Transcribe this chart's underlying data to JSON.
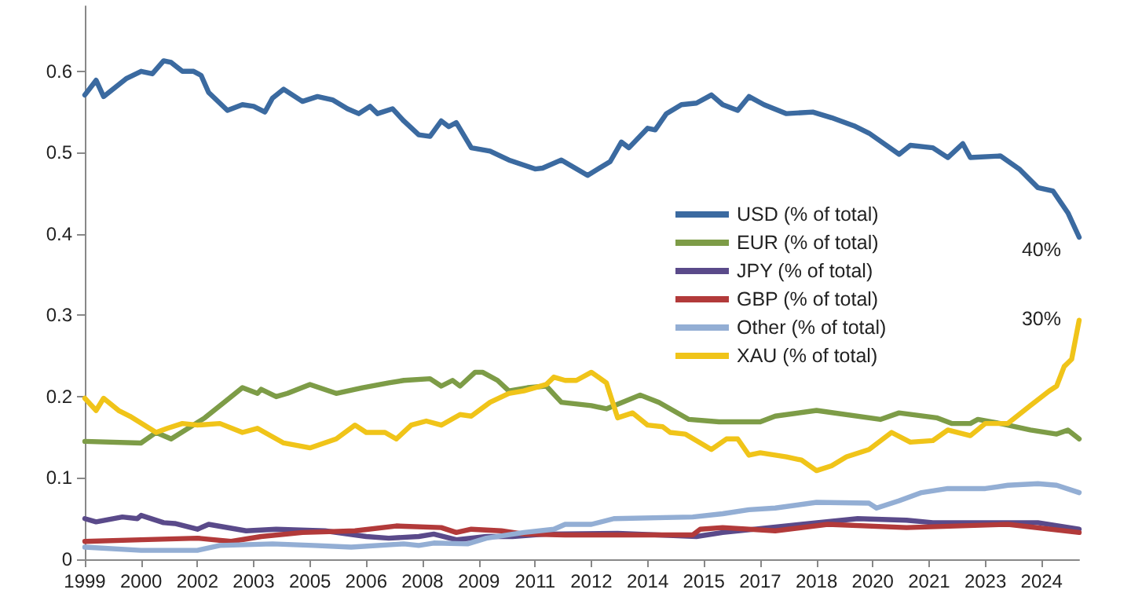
{
  "chart_data": {
    "type": "line",
    "xlim": [
      1999,
      2025.5
    ],
    "ylim": [
      0,
      0.68
    ],
    "yticks": [
      0,
      0.1,
      0.2,
      0.3,
      0.4,
      0.5,
      0.6
    ],
    "xticks": [
      {
        "value": 1999,
        "label": "1999"
      },
      {
        "value": 2000.5,
        "label": "2000"
      },
      {
        "value": 2002,
        "label": "2002"
      },
      {
        "value": 2003.5,
        "label": "2003"
      },
      {
        "value": 2005,
        "label": "2005"
      },
      {
        "value": 2006.5,
        "label": "2006"
      },
      {
        "value": 2008,
        "label": "2008"
      },
      {
        "value": 2009.5,
        "label": "2009"
      },
      {
        "value": 2011,
        "label": "2011"
      },
      {
        "value": 2012.5,
        "label": "2012"
      },
      {
        "value": 2014,
        "label": "2014"
      },
      {
        "value": 2015.5,
        "label": "2015"
      },
      {
        "value": 2017,
        "label": "2017"
      },
      {
        "value": 2018.5,
        "label": "2018"
      },
      {
        "value": 2020,
        "label": "2020"
      },
      {
        "value": 2021.5,
        "label": "2021"
      },
      {
        "value": 2023,
        "label": "2023"
      },
      {
        "value": 2024.5,
        "label": "2024"
      }
    ],
    "grid": false,
    "legend": "right",
    "marker": "none",
    "line_style": "solid",
    "annotations": [
      "40%",
      "30%"
    ],
    "series": [
      {
        "name": "USD (% of total)",
        "color": "#3b6aa0",
        "x": [
          1999,
          1999.3,
          1999.5,
          2000.1,
          2000.5,
          2000.8,
          2001.1,
          2001.3,
          2001.6,
          2001.9,
          2002.1,
          2002.3,
          2002.8,
          2003.2,
          2003.5,
          2003.8,
          2004,
          2004.3,
          2004.8,
          2005.2,
          2005.6,
          2006,
          2006.3,
          2006.6,
          2006.8,
          2007.2,
          2007.5,
          2007.9,
          2008.2,
          2008.5,
          2008.7,
          2008.9,
          2009.3,
          2009.8,
          2010.3,
          2011,
          2011.2,
          2011.7,
          2012.4,
          2013,
          2013.3,
          2013.5,
          2014,
          2014.2,
          2014.5,
          2014.9,
          2015.3,
          2015.7,
          2016,
          2016.4,
          2016.7,
          2017.1,
          2017.7,
          2018.4,
          2018.9,
          2019.5,
          2019.9,
          2020.7,
          2021,
          2021.6,
          2022,
          2022.4,
          2022.6,
          2023.4,
          2023.9,
          2024.4,
          2024.8,
          2025.2,
          2025.5
        ],
        "values": [
          0.571,
          0.589,
          0.569,
          0.591,
          0.6,
          0.597,
          0.613,
          0.611,
          0.6,
          0.6,
          0.595,
          0.574,
          0.552,
          0.559,
          0.557,
          0.55,
          0.567,
          0.578,
          0.563,
          0.569,
          0.565,
          0.554,
          0.548,
          0.557,
          0.548,
          0.554,
          0.539,
          0.522,
          0.52,
          0.539,
          0.532,
          0.537,
          0.506,
          0.502,
          0.491,
          0.48,
          0.481,
          0.491,
          0.472,
          0.489,
          0.513,
          0.506,
          0.53,
          0.528,
          0.548,
          0.559,
          0.561,
          0.571,
          0.559,
          0.552,
          0.569,
          0.559,
          0.548,
          0.55,
          0.543,
          0.533,
          0.524,
          0.498,
          0.509,
          0.506,
          0.494,
          0.511,
          0.494,
          0.496,
          0.48,
          0.457,
          0.453,
          0.426,
          0.396
        ]
      },
      {
        "name": "EUR (% of total)",
        "color": "#7d9c47",
        "x": [
          1999,
          2000.5,
          2000.9,
          2001.3,
          2002.2,
          2003.2,
          2003.6,
          2003.7,
          2004.1,
          2004.4,
          2005,
          2005.7,
          2006.4,
          2007.1,
          2007.5,
          2008.2,
          2008.5,
          2008.8,
          2009,
          2009.4,
          2009.6,
          2010,
          2010.3,
          2010.8,
          2011.3,
          2011.7,
          2012.5,
          2012.9,
          2013.8,
          2014.3,
          2015.1,
          2015.9,
          2017,
          2017.4,
          2018.5,
          2020.2,
          2020.7,
          2021.7,
          2022.1,
          2022.6,
          2022.8,
          2023.4,
          2024.2,
          2024.9,
          2025.2,
          2025.5
        ],
        "values": [
          0.145,
          0.143,
          0.156,
          0.148,
          0.174,
          0.211,
          0.204,
          0.209,
          0.2,
          0.204,
          0.215,
          0.204,
          0.211,
          0.217,
          0.22,
          0.222,
          0.213,
          0.22,
          0.213,
          0.23,
          0.23,
          0.22,
          0.207,
          0.211,
          0.213,
          0.193,
          0.189,
          0.185,
          0.202,
          0.193,
          0.172,
          0.169,
          0.169,
          0.176,
          0.183,
          0.172,
          0.18,
          0.174,
          0.167,
          0.167,
          0.172,
          0.167,
          0.159,
          0.154,
          0.159,
          0.148
        ]
      },
      {
        "name": "JPY (% of total)",
        "color": "#5a4a8a",
        "x": [
          1999,
          1999.3,
          2000,
          2000.4,
          2000.5,
          2001.1,
          2001.4,
          2002,
          2002.3,
          2003.3,
          2004.1,
          2005.4,
          2006.5,
          2007.1,
          2007.9,
          2008.3,
          2008.9,
          2009.7,
          2010.4,
          2011.3,
          2013.2,
          2015.3,
          2016,
          2018.1,
          2019.6,
          2020.9,
          2021.6,
          2023,
          2024.4,
          2025.5
        ],
        "values": [
          0.05,
          0.046,
          0.052,
          0.05,
          0.054,
          0.045,
          0.044,
          0.037,
          0.043,
          0.035,
          0.037,
          0.035,
          0.028,
          0.026,
          0.028,
          0.031,
          0.024,
          0.028,
          0.028,
          0.031,
          0.032,
          0.028,
          0.033,
          0.043,
          0.05,
          0.048,
          0.045,
          0.045,
          0.045,
          0.037
        ]
      },
      {
        "name": "GBP (% of total)",
        "color": "#b23a3a",
        "x": [
          1999,
          2000.5,
          2002,
          2002.9,
          2003.7,
          2004.8,
          2006.2,
          2007.3,
          2008.5,
          2008.9,
          2009.3,
          2010.1,
          2010.7,
          2011.8,
          2013.2,
          2015.2,
          2015.4,
          2016,
          2017.4,
          2018.8,
          2020.9,
          2023.6,
          2025.5
        ],
        "values": [
          0.022,
          0.024,
          0.026,
          0.022,
          0.028,
          0.033,
          0.035,
          0.041,
          0.039,
          0.033,
          0.037,
          0.035,
          0.031,
          0.03,
          0.03,
          0.03,
          0.037,
          0.039,
          0.035,
          0.043,
          0.039,
          0.043,
          0.033
        ]
      },
      {
        "name": "Other (% of total)",
        "color": "#93aed4",
        "x": [
          1999,
          2000.5,
          2002,
          2002.6,
          2004,
          2005.1,
          2006.1,
          2007.5,
          2007.9,
          2008.3,
          2009.2,
          2009.7,
          2010.7,
          2011.5,
          2011.8,
          2012.5,
          2013.1,
          2015.2,
          2016,
          2016.7,
          2017.4,
          2018.5,
          2019.9,
          2020.1,
          2020.7,
          2021.3,
          2022,
          2023,
          2023.6,
          2024.4,
          2024.9,
          2025.5
        ],
        "values": [
          0.015,
          0.011,
          0.011,
          0.017,
          0.019,
          0.017,
          0.015,
          0.019,
          0.017,
          0.02,
          0.019,
          0.026,
          0.033,
          0.037,
          0.043,
          0.043,
          0.05,
          0.052,
          0.056,
          0.061,
          0.063,
          0.07,
          0.069,
          0.063,
          0.072,
          0.082,
          0.087,
          0.087,
          0.091,
          0.093,
          0.091,
          0.082
        ]
      },
      {
        "name": "XAU (% of total)",
        "color": "#f0c419",
        "x": [
          1999,
          1999.3,
          1999.5,
          1999.9,
          2000.2,
          2000.9,
          2001.2,
          2001.6,
          2002,
          2002.6,
          2003.2,
          2003.6,
          2004.3,
          2005,
          2005.7,
          2006.2,
          2006.5,
          2007,
          2007.3,
          2007.7,
          2008.1,
          2008.5,
          2009,
          2009.3,
          2009.8,
          2010.3,
          2010.7,
          2011.3,
          2011.5,
          2011.8,
          2012.1,
          2012.5,
          2012.9,
          2013.2,
          2013.6,
          2014,
          2014.4,
          2014.6,
          2015,
          2015.7,
          2016.1,
          2016.4,
          2016.7,
          2017,
          2017.7,
          2018.1,
          2018.5,
          2018.9,
          2019.3,
          2019.9,
          2020.5,
          2021,
          2021.6,
          2022,
          2022.6,
          2023,
          2023.6,
          2024.2,
          2024.7,
          2024.9,
          2025.1,
          2025.3,
          2025.5
        ],
        "values": [
          0.198,
          0.183,
          0.198,
          0.183,
          0.176,
          0.156,
          0.161,
          0.167,
          0.165,
          0.167,
          0.156,
          0.161,
          0.143,
          0.137,
          0.148,
          0.165,
          0.156,
          0.156,
          0.148,
          0.165,
          0.17,
          0.165,
          0.178,
          0.176,
          0.193,
          0.204,
          0.207,
          0.215,
          0.224,
          0.22,
          0.22,
          0.23,
          0.217,
          0.174,
          0.18,
          0.165,
          0.163,
          0.156,
          0.154,
          0.135,
          0.148,
          0.148,
          0.128,
          0.131,
          0.126,
          0.122,
          0.109,
          0.115,
          0.126,
          0.135,
          0.156,
          0.144,
          0.146,
          0.159,
          0.152,
          0.167,
          0.167,
          0.189,
          0.207,
          0.213,
          0.237,
          0.246,
          0.294
        ]
      }
    ]
  }
}
